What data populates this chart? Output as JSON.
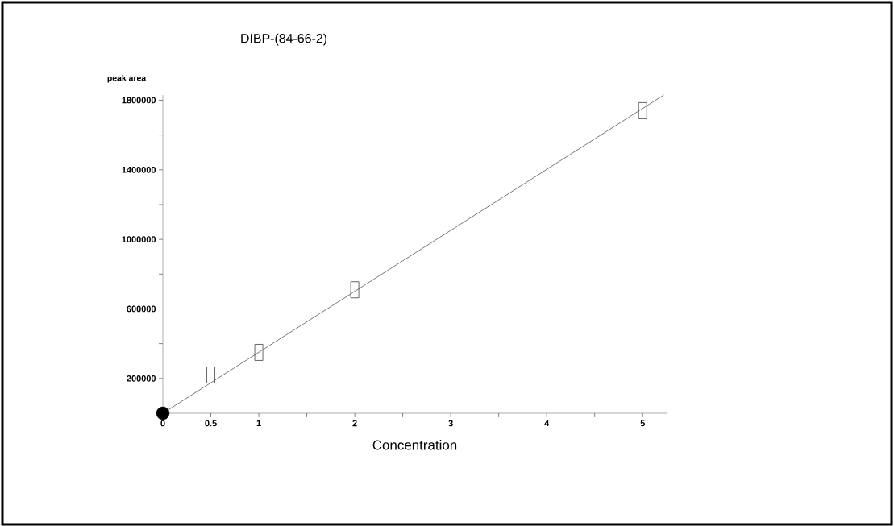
{
  "chart_data": {
    "type": "scatter",
    "title": "DIBP-(84-66-2)",
    "xlabel": "Concentration",
    "ylabel": "peak area",
    "xlim": [
      0,
      5.25
    ],
    "ylim": [
      0,
      1830000
    ],
    "xticks": [
      0,
      0.5,
      1,
      {
        "value": 1.5,
        "label": null
      },
      2,
      {
        "value": 2.5,
        "label": null
      },
      3,
      {
        "value": 3.5,
        "label": null
      },
      4,
      {
        "value": 4.5,
        "label": null
      },
      5
    ],
    "yticks": [
      200000,
      {
        "value": 400000,
        "label": null
      },
      600000,
      {
        "value": 800000,
        "label": null
      },
      1000000,
      {
        "value": 1200000,
        "label": null
      },
      1400000,
      {
        "value": 1600000,
        "label": null
      },
      1800000
    ],
    "grid": false,
    "series": [
      {
        "marker": "square",
        "color": "#404040",
        "x": [
          0.5,
          1,
          2,
          5
        ],
        "values": [
          220000,
          350000,
          710000,
          1740000
        ]
      },
      {
        "marker": "circle",
        "color": "#000000",
        "x": [
          0
        ],
        "values": [
          0
        ]
      },
      {
        "type": "line",
        "marker": "none",
        "color": "#555555",
        "x": [
          0,
          5.22
        ],
        "values": [
          0,
          1830000
        ]
      }
    ]
  }
}
